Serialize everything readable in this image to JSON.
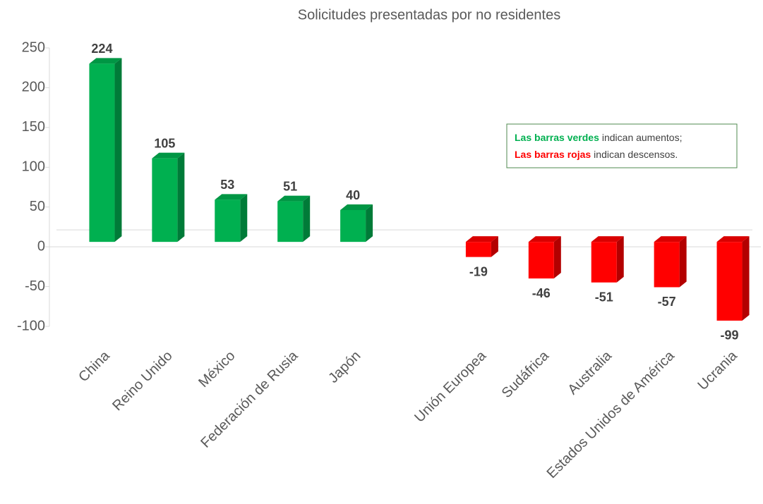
{
  "chart_data": {
    "type": "bar3d",
    "title": "Solicitudes presentadas por no residentes",
    "categories": [
      "China",
      "Reino Unido",
      "México",
      "Federación de Rusia",
      "Japón",
      null,
      "Unión Europea",
      "Sudáfrica",
      "Australia",
      "Estados Unidos de América",
      "Ucrania"
    ],
    "values": [
      224,
      105,
      53,
      51,
      40,
      null,
      -19,
      -46,
      -51,
      -57,
      -99
    ],
    "color_increase": "#00b050",
    "color_decrease": "#ff0000",
    "ylim": [
      -100,
      250
    ],
    "yticks": [
      -100,
      -50,
      0,
      50,
      100,
      150,
      200,
      250
    ],
    "annotation": {
      "lines": [
        [
          {
            "text": "Las barras verdes",
            "color": "#00b050"
          },
          {
            "text": "indican aumentos;"
          }
        ],
        [
          {
            "text": "Las barras rojas",
            "color": "#ff0000"
          },
          {
            "text": "indican descensos."
          }
        ]
      ]
    }
  }
}
